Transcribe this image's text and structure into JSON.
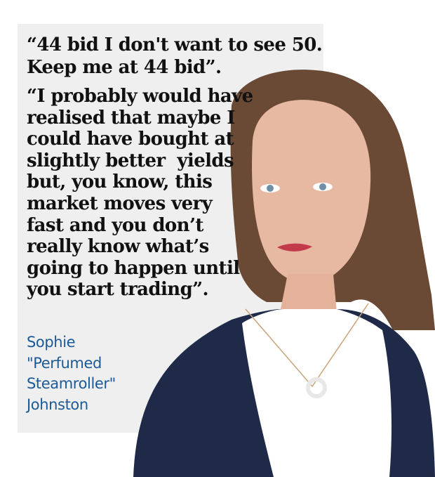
{
  "quotes": [
    {
      "lines": [
        "“44 bid I don't want to see 50.",
        "Keep me at 44 bid”."
      ]
    },
    {
      "lines": [
        "“I probably would have",
        "realised that maybe I",
        "could have bought at",
        "slightly better  yields",
        "but, you know, this",
        "market moves very",
        "fast and you don’t",
        "really know what’s",
        "going to happen until",
        "you start trading”."
      ]
    }
  ],
  "attribution": {
    "lines": [
      "Sophie",
      "\"Perfumed",
      "Steamroller\"",
      "Johnston"
    ]
  }
}
